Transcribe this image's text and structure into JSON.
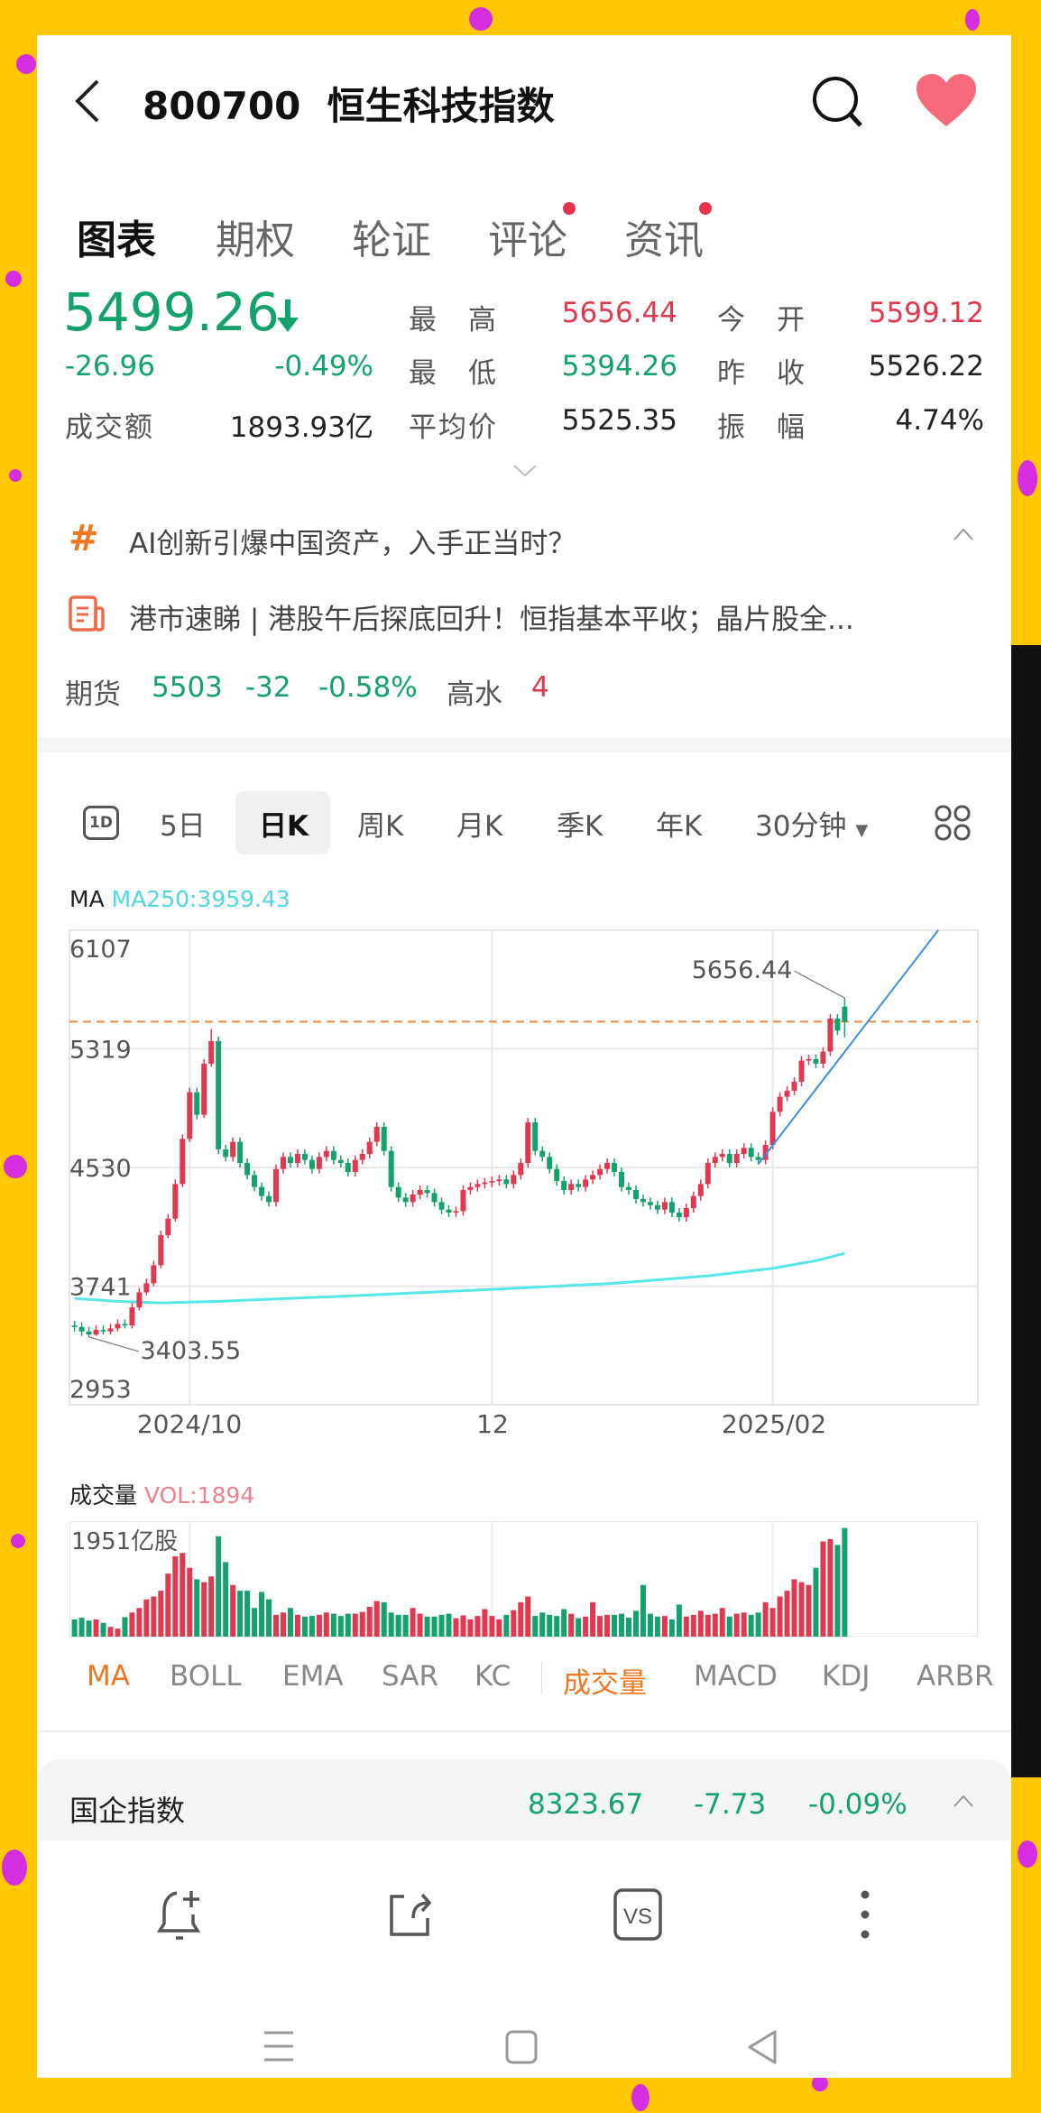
{
  "header": {
    "code": "800700",
    "name": "恒生科技指数",
    "back_icon": "back-chevron-icon",
    "search_icon": "search-icon",
    "favorite_icon": "heart-icon"
  },
  "tabs": [
    {
      "label": "图表",
      "active": true
    },
    {
      "label": "期权"
    },
    {
      "label": "轮证"
    },
    {
      "label": "评论",
      "badge": true
    },
    {
      "label": "资讯",
      "badge": true
    }
  ],
  "quote": {
    "price": "5499.26",
    "direction": "down",
    "change": "-26.96",
    "change_pct": "-0.49%",
    "turnover_label": "成交额",
    "turnover": "1893.93亿",
    "high_label": "最　高",
    "high": "5656.44",
    "low_label": "最　低",
    "low": "5394.26",
    "avg_label": "平均价",
    "avg": "5525.35",
    "open_label": "今　开",
    "open": "5599.12",
    "prev_close_label": "昨　收",
    "prev_close": "5526.22",
    "amplitude_label": "振　幅",
    "amplitude": "4.74%"
  },
  "news": [
    {
      "icon": "hashtag-icon",
      "text": "AI创新引爆中国资产，入手正当时？"
    },
    {
      "icon": "article-icon",
      "text": "港市速睇 | 港股午后探底回升！恒指基本平收；晶片股全..."
    }
  ],
  "futures": {
    "label": "期货",
    "price": "5503",
    "change": "-32",
    "change_pct": "-0.58%",
    "premium_label": "高水",
    "premium": "4"
  },
  "periods": {
    "items": [
      "5日",
      "日K",
      "周K",
      "月K",
      "季K",
      "年K",
      "30分钟"
    ],
    "selected": "日K",
    "icon_1d": "1D"
  },
  "ma_legend": {
    "label": "MA",
    "ma250": "MA250:3959.43"
  },
  "vol_legend": {
    "label": "成交量",
    "vol": "VOL:1894",
    "max_label": "1951亿股"
  },
  "indicators": {
    "main": [
      "MA",
      "BOLL",
      "EMA",
      "SAR",
      "KC"
    ],
    "sub": [
      "成交量",
      "MACD",
      "KDJ",
      "ARBR"
    ],
    "active_main": "MA",
    "active_sub": "成交量"
  },
  "bottom_quote": {
    "name": "国企指数",
    "price": "8323.67",
    "change": "-7.73",
    "change_pct": "-0.09%"
  },
  "toolbar": [
    "bell-plus-icon",
    "share-icon",
    "vs-icon",
    "more-icon"
  ],
  "nav": [
    "menu-icon",
    "home-icon",
    "back-icon"
  ],
  "colors": {
    "up": "#e2384f",
    "down": "#13a26b",
    "ma250": "#58e6e8",
    "trendline": "#3b8fe3",
    "current_price_line": "#f08a3a",
    "accent": "#f07622"
  },
  "chart_data": {
    "type": "candlestick",
    "ylim": [
      2953,
      6107
    ],
    "y_ticks": [
      "6107",
      "5319",
      "4530",
      "3741",
      "2953"
    ],
    "x_ticks": [
      {
        "label": "2024/10",
        "index": 16
      },
      {
        "label": "12",
        "index": 58
      },
      {
        "label": "2025/02",
        "index": 97
      }
    ],
    "grid": true,
    "current_price": 5499.26,
    "annotations": [
      {
        "label": "5656.44",
        "index": 107,
        "value": 5656.44
      },
      {
        "label": "3403.55",
        "index": 2,
        "value": 3403.55
      }
    ],
    "open": [
      3480,
      3470,
      3440,
      3420,
      3450,
      3440,
      3460,
      3490,
      3480,
      3600,
      3700,
      3760,
      3880,
      4080,
      4190,
      4420,
      4720,
      5030,
      4880,
      5220,
      5370,
      4650,
      4600,
      4700,
      4560,
      4480,
      4400,
      4340,
      4300,
      4520,
      4600,
      4560,
      4620,
      4580,
      4520,
      4600,
      4640,
      4580,
      4560,
      4500,
      4580,
      4620,
      4700,
      4800,
      4640,
      4400,
      4330,
      4300,
      4350,
      4380,
      4360,
      4300,
      4250,
      4230,
      4240,
      4380,
      4400,
      4420,
      4430,
      4440,
      4450,
      4420,
      4480,
      4560,
      4830,
      4640,
      4600,
      4520,
      4440,
      4380,
      4420,
      4400,
      4450,
      4480,
      4520,
      4560,
      4500,
      4400,
      4380,
      4320,
      4300,
      4280,
      4250,
      4300,
      4230,
      4200,
      4260,
      4340,
      4420,
      4560,
      4600,
      4620,
      4560,
      4620,
      4660,
      4600,
      4580,
      4680,
      4900,
      5000,
      5040,
      5100,
      5240,
      5250,
      5220,
      5300,
      5520,
      5599.12
    ],
    "high": [
      3510,
      3500,
      3470,
      3480,
      3480,
      3490,
      3520,
      3520,
      3630,
      3730,
      3790,
      3910,
      4110,
      4220,
      4450,
      4750,
      5060,
      5060,
      5250,
      5450,
      5400,
      4680,
      4730,
      4730,
      4590,
      4510,
      4430,
      4370,
      4550,
      4630,
      4630,
      4650,
      4650,
      4610,
      4630,
      4670,
      4670,
      4610,
      4590,
      4610,
      4650,
      4730,
      4830,
      4830,
      4670,
      4430,
      4360,
      4380,
      4410,
      4410,
      4390,
      4330,
      4280,
      4270,
      4410,
      4430,
      4450,
      4460,
      4470,
      4480,
      4480,
      4510,
      4590,
      4860,
      4860,
      4670,
      4630,
      4550,
      4470,
      4450,
      4450,
      4480,
      4510,
      4550,
      4590,
      4590,
      4530,
      4430,
      4410,
      4350,
      4330,
      4310,
      4330,
      4330,
      4260,
      4290,
      4370,
      4450,
      4590,
      4630,
      4650,
      4650,
      4650,
      4690,
      4690,
      4630,
      4710,
      4930,
      5030,
      5070,
      5130,
      5270,
      5280,
      5280,
      5330,
      5550,
      5550,
      5656.44
    ],
    "low": [
      3440,
      3410,
      3403.55,
      3410,
      3420,
      3420,
      3440,
      3460,
      3460,
      3580,
      3680,
      3740,
      3860,
      4060,
      4170,
      4400,
      4700,
      4850,
      4860,
      5200,
      4620,
      4570,
      4570,
      4530,
      4450,
      4370,
      4310,
      4270,
      4270,
      4490,
      4530,
      4530,
      4550,
      4490,
      4490,
      4570,
      4550,
      4530,
      4470,
      4470,
      4550,
      4590,
      4670,
      4610,
      4370,
      4300,
      4270,
      4270,
      4320,
      4330,
      4270,
      4220,
      4200,
      4200,
      4210,
      4350,
      4370,
      4390,
      4400,
      4410,
      4390,
      4390,
      4450,
      4530,
      4610,
      4570,
      4490,
      4410,
      4350,
      4350,
      4370,
      4370,
      4420,
      4450,
      4490,
      4470,
      4370,
      4350,
      4290,
      4270,
      4250,
      4220,
      4220,
      4200,
      4170,
      4170,
      4230,
      4310,
      4390,
      4530,
      4570,
      4530,
      4530,
      4590,
      4570,
      4550,
      4550,
      4650,
      4870,
      4970,
      5010,
      5070,
      5210,
      5190,
      5190,
      5270,
      5410,
      5394.26
    ],
    "close": [
      3470,
      3440,
      3420,
      3450,
      3440,
      3460,
      3490,
      3480,
      3600,
      3700,
      3760,
      3880,
      4080,
      4190,
      4420,
      4720,
      5030,
      4880,
      5220,
      5370,
      4650,
      4600,
      4700,
      4560,
      4480,
      4400,
      4340,
      4300,
      4520,
      4600,
      4560,
      4620,
      4580,
      4520,
      4600,
      4640,
      4580,
      4560,
      4500,
      4580,
      4620,
      4700,
      4800,
      4640,
      4400,
      4330,
      4300,
      4350,
      4380,
      4360,
      4300,
      4250,
      4230,
      4240,
      4380,
      4400,
      4420,
      4430,
      4440,
      4450,
      4420,
      4480,
      4560,
      4830,
      4640,
      4600,
      4520,
      4440,
      4380,
      4420,
      4400,
      4450,
      4480,
      4520,
      4560,
      4500,
      4400,
      4380,
      4320,
      4300,
      4280,
      4250,
      4300,
      4230,
      4200,
      4260,
      4340,
      4420,
      4560,
      4600,
      4620,
      4560,
      4620,
      4660,
      4600,
      4580,
      4680,
      4900,
      5000,
      5040,
      5100,
      5240,
      5250,
      5220,
      5300,
      5520,
      5440,
      5499.26
    ],
    "ma250": [
      [
        0,
        3660
      ],
      [
        6,
        3640
      ],
      [
        12,
        3630
      ],
      [
        20,
        3640
      ],
      [
        40,
        3680
      ],
      [
        58,
        3720
      ],
      [
        75,
        3760
      ],
      [
        88,
        3810
      ],
      [
        97,
        3860
      ],
      [
        103,
        3910
      ],
      [
        107,
        3959.43
      ]
    ],
    "trendline": [
      [
        95,
        4553
      ],
      [
        120,
        6107
      ]
    ],
    "volume": {
      "ylim": [
        0,
        1951
      ],
      "values": [
        300,
        330,
        280,
        300,
        240,
        170,
        140,
        340,
        420,
        500,
        650,
        700,
        800,
        1100,
        1400,
        1460,
        1200,
        1000,
        950,
        1050,
        1750,
        1300,
        900,
        800,
        800,
        500,
        780,
        650,
        380,
        420,
        500,
        380,
        350,
        360,
        380,
        420,
        400,
        360,
        400,
        400,
        430,
        520,
        620,
        600,
        420,
        380,
        380,
        500,
        400,
        350,
        350,
        380,
        400,
        320,
        370,
        300,
        360,
        480,
        360,
        300,
        380,
        460,
        600,
        700,
        360,
        420,
        380,
        360,
        480,
        400,
        320,
        350,
        600,
        360,
        380,
        380,
        400,
        330,
        450,
        900,
        400,
        350,
        360,
        300,
        560,
        350,
        380,
        450,
        380,
        400,
        500,
        350,
        400,
        420,
        380,
        420,
        600,
        500,
        700,
        800,
        1000,
        950,
        900,
        1200,
        1660,
        1700,
        1600,
        1894
      ]
    }
  }
}
